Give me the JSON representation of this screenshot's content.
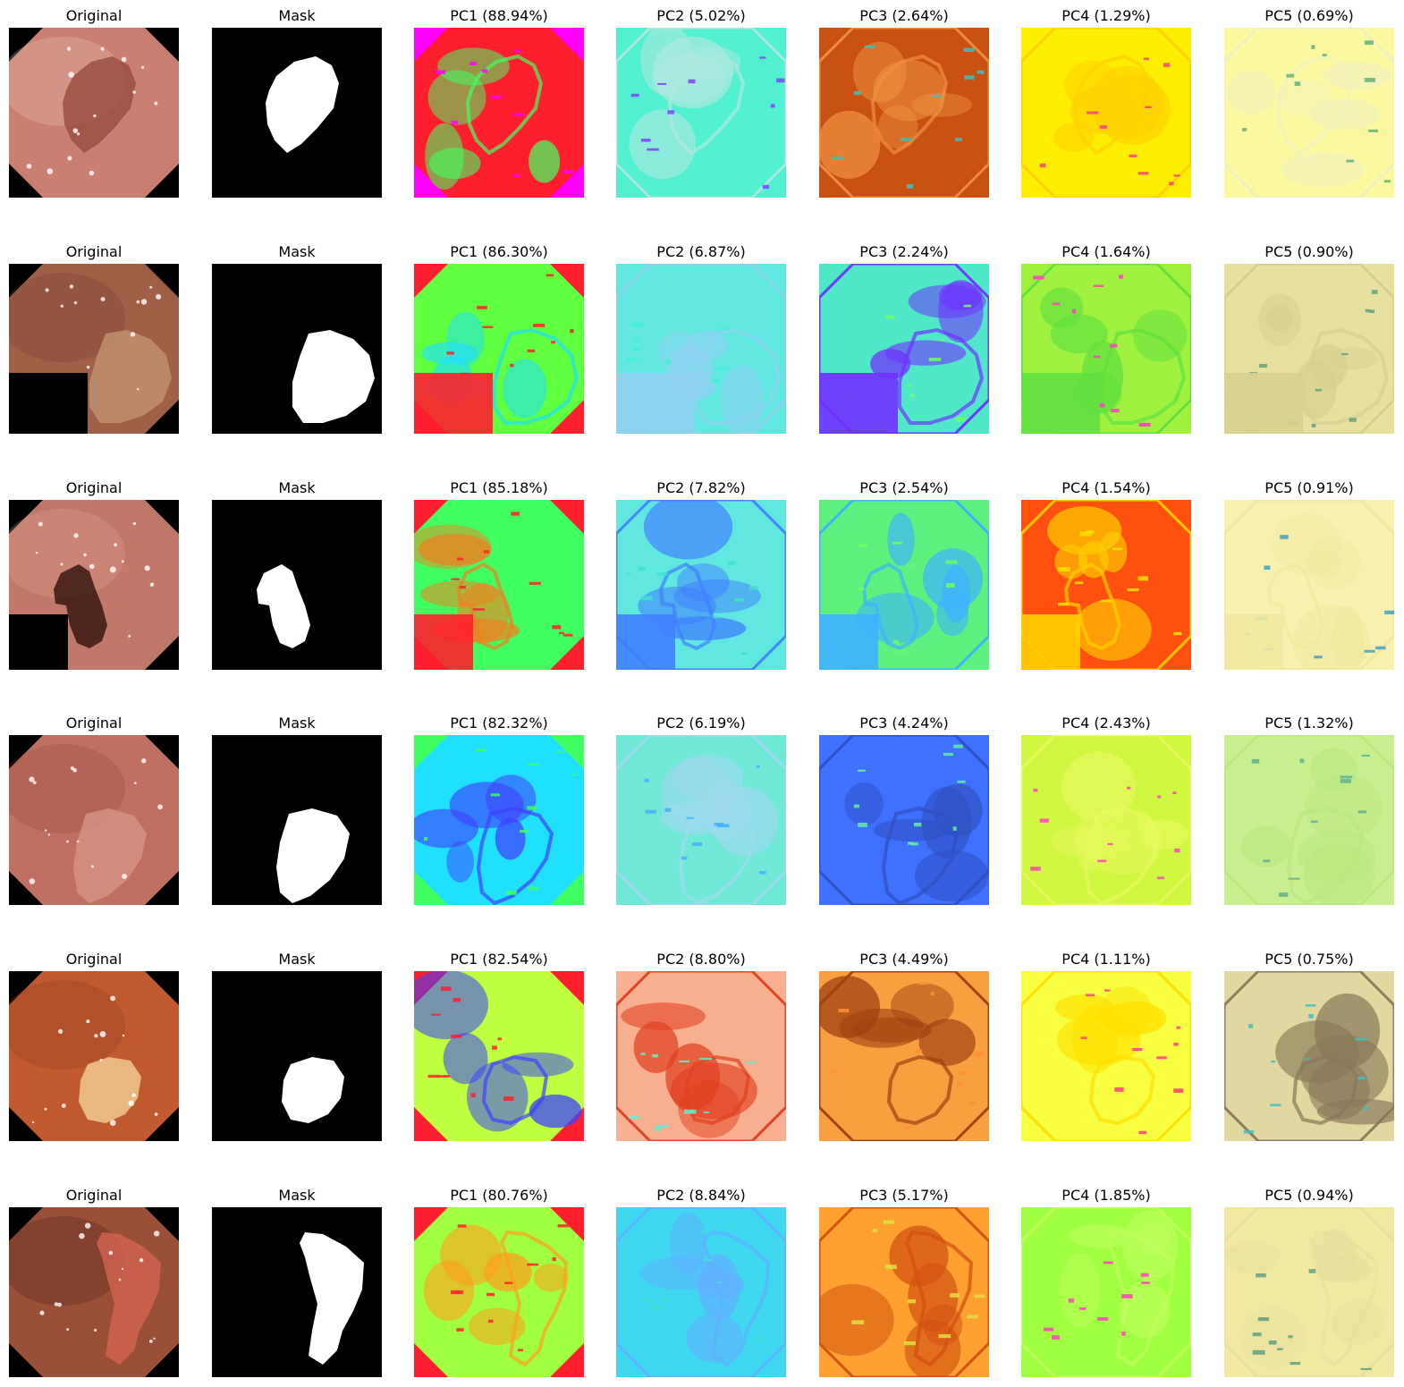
{
  "rows": [
    {
      "titles": [
        "Original",
        "Mask",
        "PC1 (88.94%)",
        "PC2 (5.02%)",
        "PC3 (2.64%)",
        "PC4 (1.29%)",
        "PC5 (0.69%)"
      ],
      "orig_colors": [
        "#c98070",
        "#9a5040",
        "#f0d0c8"
      ],
      "pc_colors": {
        "pc1": [
          "#ff1e2e",
          "#40ff60",
          "#ff00ff"
        ],
        "pc2": [
          "#50f0d0",
          "#b0e8e0",
          "#8040ff"
        ],
        "pc3": [
          "#c85010",
          "#f09040",
          "#40c0c0"
        ],
        "pc4": [
          "#ffee00",
          "#ffd000",
          "#ff4080"
        ],
        "pc5": [
          "#fcf8a0",
          "#f0f0c0",
          "#60b080"
        ]
      }
    },
    {
      "titles": [
        "Original",
        "Mask",
        "PC1 (86.30%)",
        "PC2 (6.87%)",
        "PC3 (2.24%)",
        "PC4 (1.64%)",
        "PC5 (0.90%)"
      ],
      "orig_colors": [
        "#a06048",
        "#c09070",
        "#6a3828"
      ],
      "pc_colors": {
        "pc1": [
          "#60ff40",
          "#20e0ff",
          "#ff1e2e"
        ],
        "pc2": [
          "#60e8e0",
          "#90d0f0",
          "#40f0d0"
        ],
        "pc3": [
          "#50e8c8",
          "#7030ff",
          "#70ff60"
        ],
        "pc4": [
          "#a0f040",
          "#60e040",
          "#ff40c0"
        ],
        "pc5": [
          "#e8e0a0",
          "#d8d090",
          "#60a080"
        ]
      }
    },
    {
      "titles": [
        "Original",
        "Mask",
        "PC1 (85.18%)",
        "PC2 (7.82%)",
        "PC3 (2.54%)",
        "PC4 (1.54%)",
        "PC5 (0.91%)"
      ],
      "orig_colors": [
        "#c07868",
        "#3a1810",
        "#e8a898"
      ],
      "pc_colors": {
        "pc1": [
          "#40ff60",
          "#f08020",
          "#ff1e2e"
        ],
        "pc2": [
          "#60e8e0",
          "#4080ff",
          "#40e0d0"
        ],
        "pc3": [
          "#60f080",
          "#40b0ff",
          "#70ff60"
        ],
        "pc4": [
          "#ff5010",
          "#ffd000",
          "#ffe000"
        ],
        "pc5": [
          "#f8f0b0",
          "#f0e8a0",
          "#40a0c0"
        ]
      }
    },
    {
      "titles": [
        "Original",
        "Mask",
        "PC1 (82.32%)",
        "PC2 (6.19%)",
        "PC3 (4.24%)",
        "PC4 (2.43%)",
        "PC5 (1.32%)"
      ],
      "orig_colors": [
        "#c07060",
        "#d49080",
        "#8a4030"
      ],
      "pc_colors": {
        "pc1": [
          "#20e0ff",
          "#4040ff",
          "#40ff60"
        ],
        "pc2": [
          "#70e8d8",
          "#a0d8f0",
          "#40b0ff"
        ],
        "pc3": [
          "#4070ff",
          "#3050c0",
          "#60f0a0"
        ],
        "pc4": [
          "#d0f840",
          "#e8f860",
          "#ff40c0"
        ],
        "pc5": [
          "#c8f090",
          "#b8e880",
          "#60b090"
        ]
      }
    },
    {
      "titles": [
        "Original",
        "Mask",
        "PC1 (82.54%)",
        "PC2 (8.80%)",
        "PC3 (4.49%)",
        "PC4 (1.11%)",
        "PC5 (0.75%)"
      ],
      "orig_colors": [
        "#c05830",
        "#f0c890",
        "#8a3820"
      ],
      "pc_colors": {
        "pc1": [
          "#c0ff40",
          "#4040ff",
          "#ff1e2e"
        ],
        "pc2": [
          "#f8b090",
          "#e04020",
          "#60f0d0"
        ],
        "pc3": [
          "#f8a040",
          "#a04010",
          "#ff9030"
        ],
        "pc4": [
          "#f8ff40",
          "#ffe000",
          "#ff4080"
        ],
        "pc5": [
          "#e0d8a0",
          "#8a7858",
          "#40c0c0"
        ]
      }
    },
    {
      "titles": [
        "Original",
        "Mask",
        "PC1 (80.76%)",
        "PC2 (8.84%)",
        "PC3 (5.17%)",
        "PC4 (1.85%)",
        "PC5 (0.94%)"
      ],
      "orig_colors": [
        "#9a5038",
        "#d06050",
        "#3a1810"
      ],
      "pc_colors": {
        "pc1": [
          "#a0ff40",
          "#ffa020",
          "#ff1e2e"
        ],
        "pc2": [
          "#40d8f0",
          "#60b0ff",
          "#40e0d0"
        ],
        "pc3": [
          "#ffa030",
          "#d05010",
          "#e0e040"
        ],
        "pc4": [
          "#a0ff40",
          "#c0ff60",
          "#ff40c0"
        ],
        "pc5": [
          "#f0e8a0",
          "#e8e0a0",
          "#60a080"
        ]
      }
    }
  ]
}
